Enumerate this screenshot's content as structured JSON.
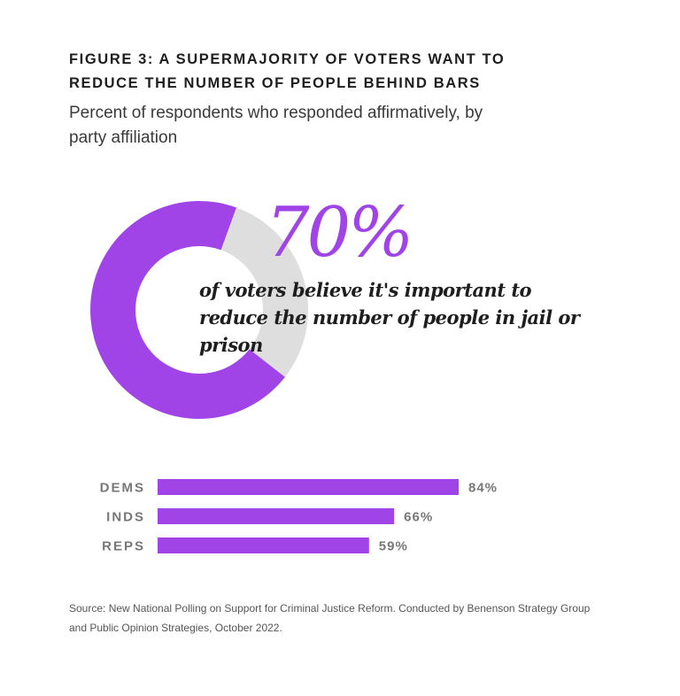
{
  "chart_data": [
    {
      "type": "pie",
      "title": "FIGURE 3: A SUPERMAJORITY OF VOTERS WANT TO REDUCE THE NUMBER OF PEOPLE BEHIND BARS",
      "subtitle": "Percent of respondents who responded affirmatively, by party affiliation",
      "donut": true,
      "values": [
        70,
        30
      ],
      "colors": [
        "#a044e8",
        "#dedede"
      ],
      "headline": "70%",
      "annotation": "of voters believe it's important to reduce the number of people in jail or prison"
    },
    {
      "type": "bar",
      "orientation": "horizontal",
      "categories": [
        "DEMS",
        "INDS",
        "REPS"
      ],
      "values": [
        84,
        66,
        59
      ],
      "labels": [
        "84%",
        "66%",
        "59%"
      ],
      "color": "#a044e8",
      "xlim": [
        0,
        100
      ]
    }
  ],
  "source": "Source: New National Polling on Support for Criminal Justice Reform. Conducted by Benenson Strategy Group and Public Opinion Strategies, October 2022."
}
